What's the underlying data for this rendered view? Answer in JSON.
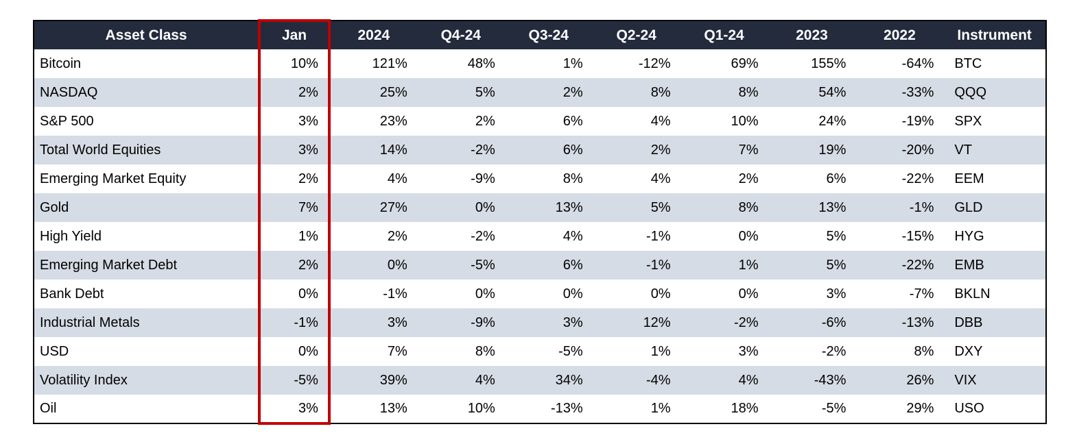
{
  "chart_data": {
    "type": "table",
    "title": "",
    "columns": [
      "Asset Class",
      "Jan",
      "2024",
      "Q4-24",
      "Q3-24",
      "Q2-24",
      "Q1-24",
      "2023",
      "2022",
      "Instrument"
    ],
    "highlighted_column": "Jan",
    "rows": [
      [
        "Bitcoin",
        "10%",
        "121%",
        "48%",
        "1%",
        "-12%",
        "69%",
        "155%",
        "-64%",
        "BTC"
      ],
      [
        "NASDAQ",
        "2%",
        "25%",
        "5%",
        "2%",
        "8%",
        "8%",
        "54%",
        "-33%",
        "QQQ"
      ],
      [
        "S&P 500",
        "3%",
        "23%",
        "2%",
        "6%",
        "4%",
        "10%",
        "24%",
        "-19%",
        "SPX"
      ],
      [
        "Total World Equities",
        "3%",
        "14%",
        "-2%",
        "6%",
        "2%",
        "7%",
        "19%",
        "-20%",
        "VT"
      ],
      [
        "Emerging Market Equity",
        "2%",
        "4%",
        "-9%",
        "8%",
        "4%",
        "2%",
        "6%",
        "-22%",
        "EEM"
      ],
      [
        "Gold",
        "7%",
        "27%",
        "0%",
        "13%",
        "5%",
        "8%",
        "13%",
        "-1%",
        "GLD"
      ],
      [
        "High Yield",
        "1%",
        "2%",
        "-2%",
        "4%",
        "-1%",
        "0%",
        "5%",
        "-15%",
        "HYG"
      ],
      [
        "Emerging Market Debt",
        "2%",
        "0%",
        "-5%",
        "6%",
        "-1%",
        "1%",
        "5%",
        "-22%",
        "EMB"
      ],
      [
        "Bank Debt",
        "0%",
        "-1%",
        "0%",
        "0%",
        "0%",
        "0%",
        "3%",
        "-7%",
        "BKLN"
      ],
      [
        "Industrial Metals",
        "-1%",
        "3%",
        "-9%",
        "3%",
        "12%",
        "-2%",
        "-6%",
        "-13%",
        "DBB"
      ],
      [
        "USD",
        "0%",
        "7%",
        "8%",
        "-5%",
        "1%",
        "3%",
        "-2%",
        "8%",
        "DXY"
      ],
      [
        "Volatility Index",
        "-5%",
        "39%",
        "4%",
        "34%",
        "-4%",
        "4%",
        "-43%",
        "26%",
        "VIX"
      ],
      [
        "Oil",
        "3%",
        "13%",
        "10%",
        "-13%",
        "1%",
        "18%",
        "-5%",
        "29%",
        "USO"
      ]
    ]
  },
  "colors": {
    "header_bg": "#232B3D",
    "header_text": "#FFFFFF",
    "row_bg": "#FFFFFF",
    "row_alt_bg": "#D6DCE5",
    "highlight_border": "#C00000",
    "table_border": "#000000"
  }
}
